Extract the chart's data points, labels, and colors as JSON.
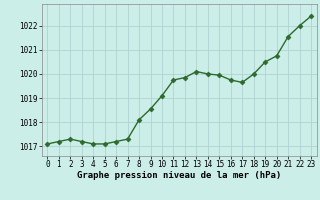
{
  "x": [
    0,
    1,
    2,
    3,
    4,
    5,
    6,
    7,
    8,
    9,
    10,
    11,
    12,
    13,
    14,
    15,
    16,
    17,
    18,
    19,
    20,
    21,
    22,
    23
  ],
  "y": [
    1017.1,
    1017.2,
    1017.3,
    1017.2,
    1017.1,
    1017.1,
    1017.2,
    1017.3,
    1018.1,
    1018.55,
    1019.1,
    1019.75,
    1019.85,
    1020.1,
    1020.0,
    1019.95,
    1019.75,
    1019.65,
    1020.0,
    1020.5,
    1020.75,
    1021.55,
    1022.0,
    1022.4
  ],
  "line_color": "#2d6a2d",
  "marker_color": "#2d6a2d",
  "bg_plot": "#cceee8",
  "bg_fig": "#cceee8",
  "grid_color": "#aacccc",
  "xlabel": "Graphe pression niveau de la mer (hPa)",
  "xlabel_fontsize": 6.5,
  "ylabel_ticks": [
    1017,
    1018,
    1019,
    1020,
    1021,
    1022
  ],
  "ylim": [
    1016.6,
    1022.9
  ],
  "xlim": [
    -0.5,
    23.5
  ],
  "xtick_labels": [
    "0",
    "1",
    "2",
    "3",
    "4",
    "5",
    "6",
    "7",
    "8",
    "9",
    "10",
    "11",
    "12",
    "13",
    "14",
    "15",
    "16",
    "17",
    "18",
    "19",
    "20",
    "21",
    "22",
    "23"
  ],
  "tick_fontsize": 5.5,
  "marker_size": 2.5,
  "line_width": 1.0
}
